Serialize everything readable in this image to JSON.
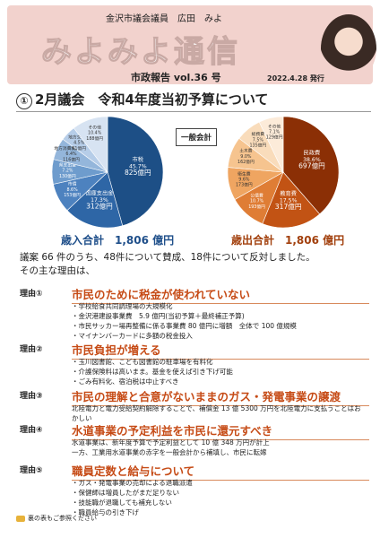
{
  "header": {
    "name": "金沢市議会議員　広田　みよ",
    "title": "みよみよ通信",
    "subtitle": "市政報告 vol.36 号",
    "date": "2022.4.28 発行"
  },
  "section": {
    "number": "①",
    "title": "2月議会　令和4年度当初予算について"
  },
  "ippan_label": "一般会計",
  "chart_data": [
    {
      "type": "pie",
      "name": "歳入",
      "slices": [
        {
          "label": "市税",
          "pct": "45.7%",
          "amount": "825億円",
          "value": 45.7,
          "color": "#1d4f86"
        },
        {
          "label": "国庫支出金",
          "pct": "17.3%",
          "amount": "312億円",
          "value": 17.3,
          "color": "#2e66a6"
        },
        {
          "label": "市債",
          "pct": "8.6%",
          "amount": "153億円",
          "value": 8.6,
          "color": "#4d82bf"
        },
        {
          "label": "県支出金",
          "pct": "7.2%",
          "amount": "130億円",
          "value": 7.2,
          "color": "#6e9ccd"
        },
        {
          "label": "地方消費税交付金",
          "pct": "6.4%",
          "amount": "116億円",
          "value": 6.4,
          "color": "#94b6db"
        },
        {
          "label": "地方交付税",
          "pct": "4.5%",
          "amount": "81億円",
          "value": 4.5,
          "color": "#b6cde8"
        },
        {
          "label": "その他",
          "pct": "10.4%",
          "amount": "188億円",
          "value": 10.4,
          "color": "#d7e3f2"
        }
      ],
      "total": "歳入合計　1,806 億円"
    },
    {
      "type": "pie",
      "name": "歳出",
      "slices": [
        {
          "label": "民政費",
          "pct": "38.6%",
          "amount": "697億円",
          "value": 38.6,
          "color": "#8b2f05"
        },
        {
          "label": "教育費",
          "pct": "17.5%",
          "amount": "317億円",
          "value": 17.5,
          "color": "#c25314"
        },
        {
          "label": "公債費",
          "pct": "10.7%",
          "amount": "193億円",
          "value": 10.7,
          "color": "#df7d35"
        },
        {
          "label": "衛生費",
          "pct": "9.6%",
          "amount": "173億円",
          "value": 9.6,
          "color": "#efa561"
        },
        {
          "label": "土木費",
          "pct": "9.0%",
          "amount": "162億円",
          "value": 9.0,
          "color": "#f6c48f"
        },
        {
          "label": "総務費",
          "pct": "7.5%",
          "amount": "135億円",
          "value": 7.5,
          "color": "#f9dcbb"
        },
        {
          "label": "その他",
          "pct": "7.1%",
          "amount": "129億円",
          "value": 7.1,
          "color": "#fcebd9"
        }
      ],
      "total": "歳出合計　1,806 億円"
    }
  ],
  "vote_text": "議案 66 件のうち、48件について賛成、18件について反対しました。",
  "vote_text2": "その主な理由は、",
  "reasons": [
    {
      "label": "理由①",
      "title": "市民のために税金が使われていない",
      "body": [
        "・学校給食共同調理場の大規模化",
        "・金沢港建設事業費　5.9 億円(当初予算＋最終補正予算)",
        "・市民サッカー場再整備に係る事業費 80 億円に増額　全体で 100 億規模",
        "・マイナンバーカードに多額の税金投入"
      ]
    },
    {
      "label": "理由②",
      "title": "市民負担が増える",
      "body": [
        "・玉川図書館、こども図書館の駐車場を有料化",
        "・介護保険料は高いまま。基金を使えば引き下げ可能",
        "・ごみ有料化、宿泊税は中止すべき"
      ]
    },
    {
      "label": "理由③",
      "title": "市民の理解と合意がないままのガス・発電事業の譲渡",
      "body": [
        "北陸電力と電力受給契約解除することで、補償金 13 億 5300 万円を北陸電力に支払うことはおかしい"
      ]
    },
    {
      "label": "理由④",
      "title": "水道事業の予定利益を市民に還元すべき",
      "body": [
        "水道事業は、新年度予算で予定利益として 10 億 348 万円が計上",
        "一方、工業用水道事業の赤字を一般会計から補填し、市民に転嫁"
      ]
    },
    {
      "label": "理由⑤",
      "title": "職員定数と給与について",
      "body": [
        "・ガス・発電事業の売却による退職派遣",
        "・保健師は増員したがまだ足りない",
        "・技能職が退職しても補充しない",
        "・職員給与の引き下げ"
      ]
    }
  ],
  "footer": "裏の表もご参照ください"
}
